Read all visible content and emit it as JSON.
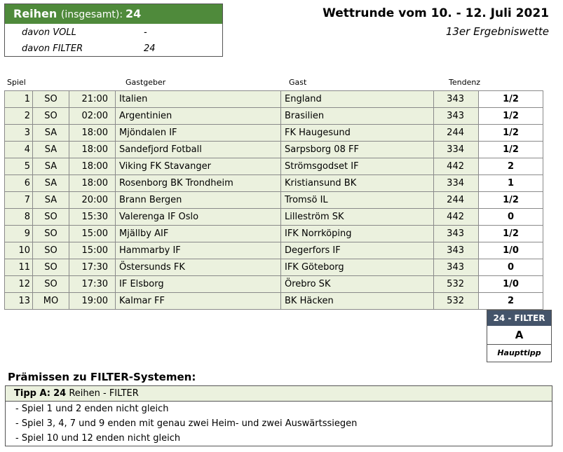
{
  "summary": {
    "label": "Reihen",
    "label_sub": "(insgesamt):",
    "total": "24",
    "rows": [
      {
        "key": "davon VOLL",
        "value": "-"
      },
      {
        "key": "davon FILTER",
        "value": "24"
      }
    ]
  },
  "header": {
    "title": "Wettrunde vom 10. - 12. Juli 2021",
    "subtitle": "13er Ergebniswette"
  },
  "columns": {
    "spiel": "Spiel",
    "gastgeber": "Gastgeber",
    "gast": "Gast",
    "tendenz": "Tendenz"
  },
  "games": [
    {
      "num": "1",
      "day": "SO",
      "time": "21:00",
      "host": "Italien",
      "guest": "England",
      "tendenz": "343",
      "tip": "1/2"
    },
    {
      "num": "2",
      "day": "SO",
      "time": "02:00",
      "host": "Argentinien",
      "guest": "Brasilien",
      "tendenz": "343",
      "tip": "1/2"
    },
    {
      "num": "3",
      "day": "SA",
      "time": "18:00",
      "host": "Mjöndalen IF",
      "guest": "FK Haugesund",
      "tendenz": "244",
      "tip": "1/2"
    },
    {
      "num": "4",
      "day": "SA",
      "time": "18:00",
      "host": "Sandefjord Fotball",
      "guest": "Sarpsborg 08 FF",
      "tendenz": "334",
      "tip": "1/2"
    },
    {
      "num": "5",
      "day": "SA",
      "time": "18:00",
      "host": "Viking FK Stavanger",
      "guest": "Strömsgodset IF",
      "tendenz": "442",
      "tip": "2"
    },
    {
      "num": "6",
      "day": "SA",
      "time": "18:00",
      "host": "Rosenborg BK Trondheim",
      "guest": "Kristiansund BK",
      "tendenz": "334",
      "tip": "1"
    },
    {
      "num": "7",
      "day": "SA",
      "time": "20:00",
      "host": "Brann Bergen",
      "guest": "Tromsö IL",
      "tendenz": "244",
      "tip": "1/2"
    },
    {
      "num": "8",
      "day": "SO",
      "time": "15:30",
      "host": "Valerenga IF Oslo",
      "guest": "Lilleström SK",
      "tendenz": "442",
      "tip": "0"
    },
    {
      "num": "9",
      "day": "SO",
      "time": "15:00",
      "host": "Mjällby AIF",
      "guest": "IFK Norrköping",
      "tendenz": "343",
      "tip": "1/2"
    },
    {
      "num": "10",
      "day": "SO",
      "time": "15:00",
      "host": "Hammarby IF",
      "guest": "Degerfors IF",
      "tendenz": "343",
      "tip": "1/0"
    },
    {
      "num": "11",
      "day": "SO",
      "time": "17:30",
      "host": "Östersunds FK",
      "guest": "IFK Göteborg",
      "tendenz": "343",
      "tip": "0"
    },
    {
      "num": "12",
      "day": "SO",
      "time": "17:30",
      "host": "IF Elsborg",
      "guest": "Örebro SK",
      "tendenz": "532",
      "tip": "1/0"
    },
    {
      "num": "13",
      "day": "MO",
      "time": "19:00",
      "host": "Kalmar FF",
      "guest": "BK Häcken",
      "tendenz": "532",
      "tip": "2"
    }
  ],
  "filter_box": {
    "header": "24 - FILTER",
    "letter": "A",
    "caption": "Haupttipp"
  },
  "premises": {
    "title": "Prämissen zu FILTER-Systemen:",
    "tipp_label": "Tipp A:",
    "tipp_count": "24",
    "tipp_rest": "Reihen - FILTER",
    "items": [
      "- Spiel 1 und 2 enden nicht gleich",
      "- Spiel 3, 4, 7 und 9 enden mit genau zwei Heim- und zwei Auswärtssiegen",
      "- Spiel 10 und 12 enden nicht gleich"
    ]
  },
  "colors": {
    "header_green": "#4f8a3b",
    "row_green": "#ebf1de",
    "filter_header": "#44546a"
  }
}
